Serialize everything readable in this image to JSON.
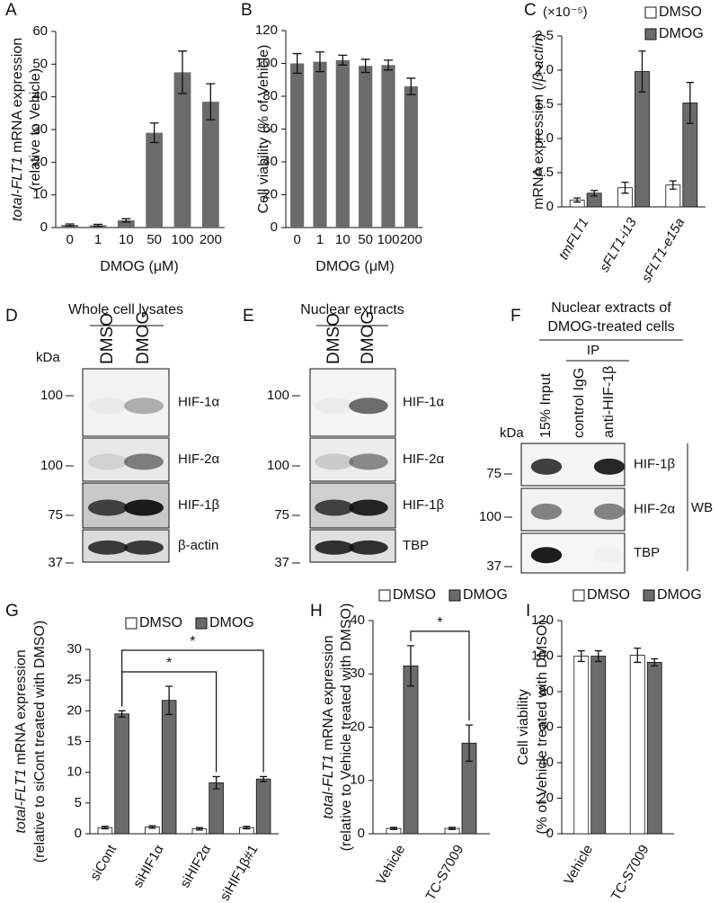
{
  "chart_data": [
    {
      "panel": "A",
      "type": "bar",
      "categories": [
        "0",
        "1",
        "10",
        "50",
        "100",
        "200"
      ],
      "values": [
        0.8,
        0.7,
        2.2,
        29,
        47.5,
        38.5
      ],
      "errors": [
        0.3,
        0.3,
        0.5,
        3,
        6.5,
        5.5
      ],
      "color": "#6b6b6b",
      "ylim": [
        0,
        60
      ],
      "yticks": [
        0,
        10,
        20,
        30,
        40,
        50,
        60
      ],
      "ylabel": [
        [
          {
            "text": "total-FLT1",
            "italic": true
          },
          {
            "text": " mRNA expression"
          }
        ],
        [
          {
            "text": "(relative to Vehicle)"
          }
        ]
      ],
      "xlabel": "DMOG (μM)"
    },
    {
      "panel": "B",
      "type": "bar",
      "categories": [
        "0",
        "1",
        "10",
        "50",
        "100",
        "200"
      ],
      "values": [
        100,
        101,
        102,
        98.5,
        99,
        86
      ],
      "errors": [
        6,
        6,
        3,
        4,
        3,
        5
      ],
      "color": "#6b6b6b",
      "ylim": [
        0,
        120
      ],
      "yticks": [
        0,
        20,
        40,
        60,
        80,
        100,
        120
      ],
      "ylabel": [
        [
          {
            "text": "Cell viability (% of Vehicle)"
          }
        ]
      ],
      "xlabel": "DMOG (μM)"
    },
    {
      "panel": "C",
      "type": "grouped_bar",
      "y_multiplier": "(×10⁻⁵)",
      "categories": [
        "tmFLT1",
        "sFLT1-i13",
        "sFLT1-e15a"
      ],
      "categories_italic": true,
      "series": [
        {
          "name": "DMSO",
          "color": "#ffffff",
          "values": [
            0.1,
            0.28,
            0.32
          ],
          "errors": [
            0.03,
            0.08,
            0.06
          ]
        },
        {
          "name": "DMOG",
          "color": "#6b6b6b",
          "values": [
            0.2,
            1.98,
            1.52
          ],
          "errors": [
            0.04,
            0.3,
            0.3
          ]
        }
      ],
      "ylim": [
        0,
        2.5
      ],
      "yticks": [
        0,
        0.5,
        {
          "value": 1,
          "label": "1.0"
        },
        1.5,
        {
          "value": 2,
          "label": "2.0"
        },
        2.5
      ],
      "ylabel": [
        [
          {
            "text": "mRNA expression (/"
          },
          {
            "text": "β-actin",
            "italic": true
          },
          {
            "text": ")"
          }
        ]
      ]
    },
    {
      "panel": "G",
      "type": "grouped_bar",
      "categories": [
        "siCont",
        "siHIF1α",
        "siHIF2α",
        "siHIF1β#1"
      ],
      "series": [
        {
          "name": "DMSO",
          "color": "#ffffff",
          "values": [
            1,
            1.1,
            0.8,
            1.0
          ],
          "errors": [
            0.2,
            0.2,
            0.2,
            0.2
          ]
        },
        {
          "name": "DMOG",
          "color": "#6b6b6b",
          "values": [
            19.5,
            21.7,
            8.3,
            8.9
          ],
          "errors": [
            0.5,
            2.3,
            1.0,
            0.4
          ]
        }
      ],
      "ylim": [
        0,
        30
      ],
      "yticks": [
        0,
        5,
        10,
        15,
        20,
        25,
        30
      ],
      "ylabel": [
        [
          {
            "text": "total-FLT1",
            "italic": true
          },
          {
            "text": " mRNA expression"
          }
        ],
        [
          {
            "text": "(relative to siCont treated with DMSO)"
          }
        ]
      ],
      "significance": [
        {
          "from": 0,
          "to": 2,
          "label": "*"
        },
        {
          "from": 0,
          "to": 3,
          "label": "*"
        }
      ]
    },
    {
      "panel": "H",
      "type": "grouped_bar",
      "categories": [
        "Vehicle",
        "TC-S7009"
      ],
      "series": [
        {
          "name": "DMSO",
          "color": "#ffffff",
          "values": [
            1,
            1
          ],
          "errors": [
            0.2,
            0.2
          ]
        },
        {
          "name": "DMOG",
          "color": "#6b6b6b",
          "values": [
            31.5,
            17
          ],
          "errors": [
            3.8,
            3.4
          ]
        }
      ],
      "ylim": [
        0,
        40
      ],
      "yticks": [
        0,
        10,
        20,
        30,
        40
      ],
      "ylabel": [
        [
          {
            "text": "total-FLT1",
            "italic": true
          },
          {
            "text": " mRNA expression"
          }
        ],
        [
          {
            "text": "(relative to Vehicle treated with DMSO)"
          }
        ]
      ],
      "significance": [
        {
          "from": 0,
          "to": 1,
          "label": "*"
        }
      ]
    },
    {
      "panel": "I",
      "type": "grouped_bar",
      "categories": [
        "Vehicle",
        "TC-S7009"
      ],
      "series": [
        {
          "name": "DMSO",
          "color": "#ffffff",
          "values": [
            100,
            100.5
          ],
          "errors": [
            3,
            4
          ]
        },
        {
          "name": "DMOG",
          "color": "#6b6b6b",
          "values": [
            100,
            96.5
          ],
          "errors": [
            3,
            2
          ]
        }
      ],
      "ylim": [
        0,
        120
      ],
      "yticks": [
        0,
        20,
        40,
        60,
        80,
        100,
        120
      ],
      "ylabel": [
        [
          {
            "text": "Cell viability"
          }
        ],
        [
          {
            "text": "(% of Vehicle treated with DMSO)"
          }
        ]
      ]
    }
  ],
  "blots": [
    {
      "panel": "D",
      "title": [
        "Whole cell lysates"
      ],
      "unit": "kDa",
      "lanes": [
        "DMSO",
        "DMOG"
      ],
      "rows": [
        {
          "marker": "100",
          "label": "HIF-1α"
        },
        {
          "marker": "100",
          "label": "HIF-2α"
        },
        {
          "marker": "75",
          "label": "HIF-1β"
        },
        {
          "marker": "37",
          "label": "β-actin"
        }
      ]
    },
    {
      "panel": "E",
      "title": [
        "Nuclear extracts"
      ],
      "lanes": [
        "DMSO",
        "DMOG"
      ],
      "rows": [
        {
          "marker": "100",
          "label": "HIF-1α"
        },
        {
          "marker": "100",
          "label": "HIF-2α"
        },
        {
          "marker": "75",
          "label": "HIF-1β"
        },
        {
          "marker": "37",
          "label": "TBP"
        }
      ]
    },
    {
      "panel": "F",
      "title": [
        "Nuclear extracts of",
        "DMOG-treated cells"
      ],
      "unit": "kDa",
      "ip_label": "IP",
      "wb_label": "WB",
      "lanes": [
        "15% Input",
        "control IgG",
        "anti-HIF-1β"
      ],
      "rows": [
        {
          "marker": "75",
          "label": "HIF-1β"
        },
        {
          "marker": "100",
          "label": "HIF-2α"
        },
        {
          "marker": "37",
          "label": "TBP"
        }
      ]
    }
  ]
}
